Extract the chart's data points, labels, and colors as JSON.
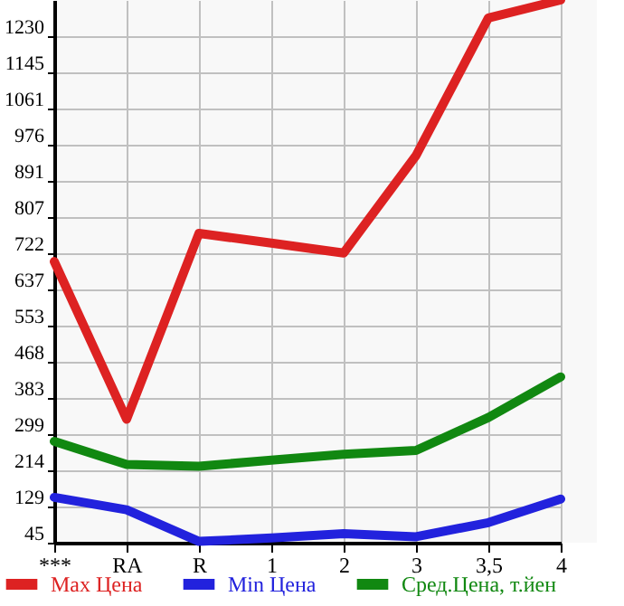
{
  "chart_data": {
    "type": "line",
    "categories": [
      "***",
      "RA",
      "R",
      "1",
      "2",
      "3",
      "3,5",
      "4"
    ],
    "series": [
      {
        "name": "Max Цена",
        "color": "#dd2222",
        "values": [
          703,
          334,
          769,
          746,
          723,
          951,
          1273,
          1315
        ]
      },
      {
        "name": "Min Цена",
        "color": "#2222dd",
        "values": [
          151,
          122,
          48,
          56,
          66,
          59,
          92,
          147
        ]
      },
      {
        "name": "Сред.Цена, т.йен",
        "color": "#118811",
        "values": [
          282,
          228,
          224,
          238,
          252,
          261,
          338,
          433
        ]
      }
    ],
    "ylim": [
      45,
      1315
    ],
    "yticks": [
      45,
      129,
      214,
      299,
      383,
      468,
      553,
      637,
      722,
      807,
      891,
      976,
      1061,
      1145,
      1230
    ],
    "grid": true,
    "legend": "bottom",
    "marker": "none",
    "line_style": "solid"
  }
}
